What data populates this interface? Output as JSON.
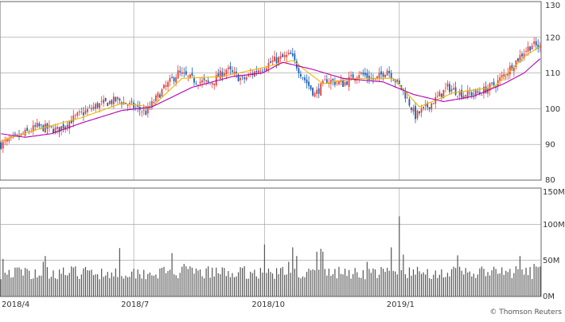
{
  "credit": "© Thomson Reuters",
  "colors": {
    "up": "#e0403a",
    "down": "#1a5fb4",
    "ma_short": "#f0b400",
    "ma_long": "#b000b0",
    "volume": "#555555",
    "grid": "#999999",
    "frame": "#666666"
  },
  "chart_data": [
    {
      "type": "candlestick",
      "name": "price",
      "x_ticks": [
        "2018/4",
        "2018/7",
        "2018/10",
        "2019/1"
      ],
      "y_ticks": [
        "80",
        "90",
        "100",
        "110",
        "120",
        "130"
      ],
      "ylim": [
        80,
        130
      ],
      "grid": true,
      "anchors": [
        [
          0,
          90
        ],
        [
          10,
          92.5
        ],
        [
          18,
          95
        ],
        [
          28,
          94
        ],
        [
          38,
          98
        ],
        [
          48,
          101
        ],
        [
          58,
          102.5
        ],
        [
          66,
          100.5
        ],
        [
          72,
          99
        ],
        [
          80,
          105
        ],
        [
          88,
          110
        ],
        [
          96,
          108
        ],
        [
          104,
          107
        ],
        [
          112,
          111
        ],
        [
          120,
          108
        ],
        [
          128,
          111
        ],
        [
          136,
          113.5
        ],
        [
          144,
          115
        ],
        [
          150,
          109
        ],
        [
          156,
          104
        ],
        [
          162,
          108
        ],
        [
          170,
          107
        ],
        [
          178,
          110
        ],
        [
          186,
          108
        ],
        [
          192,
          111
        ],
        [
          200,
          105
        ],
        [
          206,
          98
        ],
        [
          214,
          101.5
        ],
        [
          222,
          106
        ],
        [
          230,
          104
        ],
        [
          238,
          104.5
        ],
        [
          246,
          107
        ],
        [
          254,
          112
        ],
        [
          260,
          116
        ],
        [
          264,
          118
        ],
        [
          268,
          117
        ]
      ],
      "ma_short_anchors": [
        [
          0,
          91
        ],
        [
          20,
          94.5
        ],
        [
          40,
          97.5
        ],
        [
          60,
          101.5
        ],
        [
          75,
          100.5
        ],
        [
          90,
          108.5
        ],
        [
          110,
          109
        ],
        [
          130,
          111.5
        ],
        [
          145,
          113.5
        ],
        [
          160,
          107
        ],
        [
          175,
          108.5
        ],
        [
          195,
          108.5
        ],
        [
          208,
          100.5
        ],
        [
          225,
          104.5
        ],
        [
          245,
          106
        ],
        [
          260,
          114.5
        ],
        [
          268,
          117.5
        ]
      ],
      "ma_long_anchors": [
        [
          0,
          93
        ],
        [
          12,
          92
        ],
        [
          25,
          93
        ],
        [
          40,
          96
        ],
        [
          60,
          99.5
        ],
        [
          75,
          100.5
        ],
        [
          95,
          106
        ],
        [
          115,
          109
        ],
        [
          130,
          110
        ],
        [
          140,
          113
        ],
        [
          155,
          111
        ],
        [
          170,
          108.5
        ],
        [
          190,
          107.5
        ],
        [
          205,
          104
        ],
        [
          220,
          102
        ],
        [
          235,
          103.5
        ],
        [
          250,
          107
        ],
        [
          260,
          110
        ],
        [
          268,
          114
        ]
      ]
    },
    {
      "type": "bar",
      "name": "volume",
      "y_ticks": [
        "0M",
        "50M",
        "100M",
        "150M"
      ],
      "ylim": [
        0,
        150
      ],
      "base_level": 32,
      "spikes": [
        [
          1,
          52
        ],
        [
          21,
          48
        ],
        [
          22,
          56
        ],
        [
          59,
          67
        ],
        [
          85,
          60
        ],
        [
          91,
          45
        ],
        [
          131,
          72
        ],
        [
          143,
          48
        ],
        [
          145,
          68
        ],
        [
          147,
          56
        ],
        [
          157,
          62
        ],
        [
          159,
          66
        ],
        [
          160,
          62
        ],
        [
          182,
          48
        ],
        [
          194,
          68
        ],
        [
          198,
          111
        ],
        [
          200,
          58
        ],
        [
          227,
          57
        ],
        [
          258,
          56
        ],
        [
          265,
          45
        ]
      ]
    }
  ]
}
